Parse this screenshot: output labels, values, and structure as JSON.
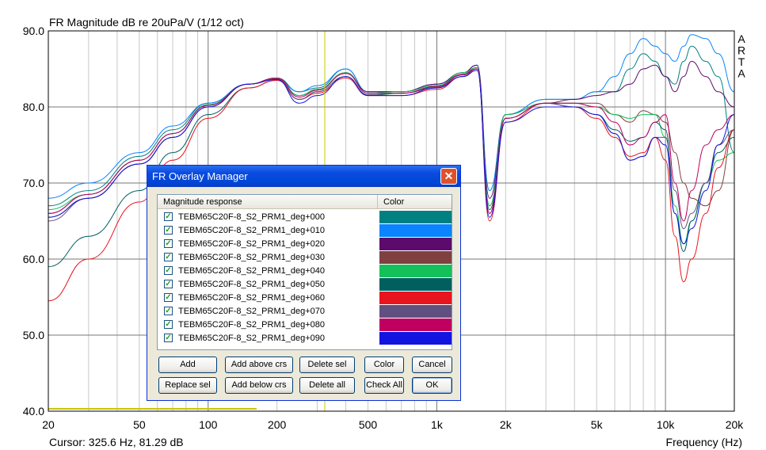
{
  "chart_data": {
    "type": "line",
    "title": "FR Magnitude dB re 20uPa/V (1/12 oct)",
    "xlabel": "Frequency (Hz)",
    "ylabel": "",
    "xscale": "log",
    "xlim": [
      20,
      20000
    ],
    "ylim": [
      40,
      90
    ],
    "x_ticks": [
      "20",
      "50",
      "100",
      "200",
      "500",
      "1k",
      "2k",
      "5k",
      "10k",
      "20k"
    ],
    "y_ticks": [
      "90.0",
      "80.0",
      "70.0",
      "60.0",
      "50.0",
      "40.0"
    ],
    "watermark": "ARTA",
    "cursor_text": "Cursor: 325.6 Hz, 81.29 dB",
    "cursor_x_hz": 325.6,
    "grid": true,
    "x": [
      20,
      30,
      50,
      70,
      100,
      150,
      200,
      250,
      300,
      400,
      500,
      700,
      1000,
      1300,
      1500,
      1700,
      2000,
      3000,
      4000,
      5000,
      6000,
      7000,
      8000,
      9000,
      10000,
      11000,
      12000,
      13000,
      15000,
      17000,
      20000
    ],
    "series": [
      {
        "name": "TEBM65C20F-8_S2_PRM1_deg+000",
        "color": "#008080",
        "values": [
          67,
          69,
          73.5,
          77,
          80.5,
          83,
          83.8,
          82,
          82.5,
          85,
          82,
          82,
          83,
          84.5,
          85,
          69,
          79,
          81,
          81,
          82,
          82,
          85,
          87,
          86,
          84,
          83,
          86,
          88,
          86,
          84,
          74
        ]
      },
      {
        "name": "TEBM65C20F-8_S2_PRM1_deg+010",
        "color": "#0b84ff",
        "values": [
          68,
          70,
          74,
          77.5,
          80.5,
          83,
          83.6,
          82,
          82.8,
          85,
          82,
          82,
          83,
          84.5,
          85.5,
          69,
          79,
          81,
          81,
          82,
          84,
          87,
          89,
          88,
          87,
          86,
          88,
          89.5,
          89,
          87,
          82
        ]
      },
      {
        "name": "TEBM65C20F-8_S2_PRM1_deg+020",
        "color": "#5c0a6b",
        "values": [
          66,
          68.5,
          73,
          76.5,
          80.3,
          83,
          83.8,
          81.5,
          82.3,
          84.5,
          82,
          82,
          83,
          84.5,
          85.5,
          68,
          79,
          80.5,
          81,
          81.5,
          82,
          83,
          85,
          85.5,
          84,
          82,
          84,
          86,
          84,
          82,
          80
        ]
      },
      {
        "name": "TEBM65C20F-8_S2_PRM1_deg+030",
        "color": "#804040",
        "values": [
          65.5,
          68,
          72.5,
          76,
          80,
          83,
          83.7,
          81.5,
          82.3,
          84.5,
          81.8,
          82,
          82.8,
          84.3,
          85.2,
          67,
          78.5,
          80.5,
          80.5,
          80.5,
          79,
          78,
          79.5,
          79,
          78,
          74,
          70,
          68,
          67,
          69,
          77
        ]
      },
      {
        "name": "TEBM65C20F-8_S2_PRM1_deg+040",
        "color": "#14c05a",
        "values": [
          66.5,
          68.5,
          73,
          76.5,
          80.3,
          83,
          83.8,
          81.5,
          82.3,
          84.5,
          81.8,
          82,
          82.8,
          84.5,
          85.2,
          67,
          79,
          80.5,
          80.5,
          80,
          79,
          78.5,
          79,
          79,
          76,
          67,
          62,
          65,
          70,
          73,
          74
        ]
      },
      {
        "name": "TEBM65C20F-8_S2_PRM1_deg+050",
        "color": "#006060",
        "values": [
          59,
          63,
          69,
          74,
          79,
          82.5,
          83.5,
          81,
          82,
          84,
          81.5,
          81.8,
          82.5,
          84,
          85,
          66.5,
          78.5,
          80.5,
          80,
          79,
          77,
          75.5,
          76,
          78,
          77,
          66,
          61,
          65,
          70,
          74,
          76
        ]
      },
      {
        "name": "TEBM65C20F-8_S2_PRM1_deg+060",
        "color": "#e8141e",
        "values": [
          54.5,
          60,
          67.5,
          73,
          78.5,
          82.5,
          83.5,
          81,
          81.8,
          83.8,
          81.5,
          81.5,
          82.3,
          84,
          85,
          65,
          78,
          80.5,
          80,
          78.5,
          76,
          73.5,
          74,
          76,
          73,
          63,
          57,
          60,
          66,
          72,
          77
        ]
      },
      {
        "name": "TEBM65C20F-8_S2_PRM1_deg+070",
        "color": "#605080",
        "values": [
          65,
          68,
          72.5,
          76,
          80,
          83,
          83.7,
          81,
          82,
          84,
          81.6,
          81.8,
          82.6,
          84.2,
          85,
          66,
          78.5,
          80.5,
          80,
          79,
          76.5,
          73,
          73.5,
          76,
          76,
          69,
          64,
          66,
          70,
          75,
          77
        ]
      },
      {
        "name": "TEBM65C20F-8_S2_PRM1_deg+080",
        "color": "#c00060",
        "values": [
          66,
          68.5,
          73,
          76.5,
          80.2,
          83,
          83.8,
          81.3,
          82.2,
          84.4,
          81.8,
          81.8,
          82.7,
          84.3,
          85,
          66,
          78.5,
          80.5,
          80.5,
          80,
          78,
          75,
          76,
          78,
          79,
          70,
          65,
          69,
          75,
          77,
          79
        ]
      },
      {
        "name": "TEBM65C20F-8_S2_PRM1_deg+090",
        "color": "#1414e0",
        "values": [
          65.5,
          68,
          72.5,
          76,
          80,
          83,
          83.6,
          80.5,
          81.5,
          84,
          81.5,
          81.5,
          82.5,
          84,
          84.8,
          65.5,
          78,
          80,
          80,
          79,
          76.5,
          73,
          73.5,
          76,
          75,
          66,
          62,
          64,
          69,
          75,
          79
        ]
      }
    ]
  },
  "dialog": {
    "title": "FR Overlay Manager",
    "close_glyph": "✕",
    "col_header_1": "Magnitude response",
    "col_header_2": "Color",
    "check_glyph": "✓",
    "buttons": {
      "add": "Add",
      "add_above": "Add above crs",
      "delete_sel": "Delete sel",
      "color": "Color",
      "cancel": "Cancel",
      "replace_sel": "Replace sel",
      "add_below": "Add below crs",
      "delete_all": "Delete all",
      "check_all": "Check All",
      "ok": "OK"
    }
  }
}
